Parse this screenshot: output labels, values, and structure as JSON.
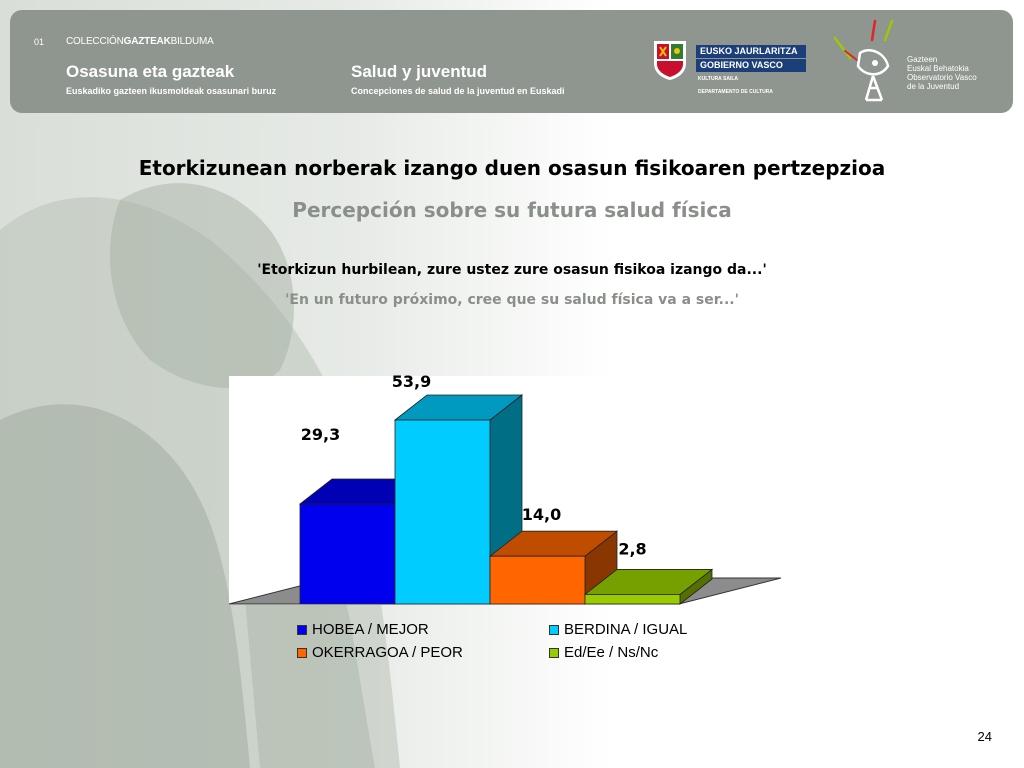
{
  "header": {
    "number": "01",
    "collection_prefix": "COLECCIÓN",
    "collection_bold": "GAZTEAK",
    "collection_suffix": "BILDUMA",
    "title_eu": "Osasuna eta gazteak",
    "subtitle_eu": "Euskadiko gazteen ikusmoldeak osasunari buruz",
    "title_es": "Salud y juventud",
    "subtitle_es": "Concepciones de salud de la juventud en Euskadi",
    "gov_line1": "EUSKO JAURLARITZA",
    "gov_line2": "GOBIERNO VASCO",
    "gov_dept1": "KULTURA SAILA",
    "gov_dept2": "DEPARTAMENTO DE CULTURA",
    "observatory": [
      "Gazteen",
      "Euskal Behatokia",
      "Observatorio Vasco",
      "de la Juventud"
    ]
  },
  "titles": {
    "main_eu": "Etorkizunean norberak izango duen osasun fisikoaren pertzepzioa",
    "main_es": "Percepción sobre su futura salud física",
    "question_eu": "'Etorkizun hurbilean, zure ustez zure osasun fisikoa izango da...'",
    "question_es": "'En un futuro próximo, cree que su salud física va a ser...'"
  },
  "chart_data": {
    "type": "bar",
    "categories": [
      "HOBEA / MEJOR",
      "BERDINA / IGUAL",
      "OKERRAGOA / PEOR",
      "Ed/Ee / Ns/Nc"
    ],
    "values": [
      29.3,
      53.9,
      14.0,
      2.8
    ],
    "value_labels": [
      "29,3",
      "53,9",
      "14,0",
      "2,8"
    ],
    "colors": [
      "#0000ee",
      "#00ccff",
      "#ff6600",
      "#99cc00"
    ],
    "side_colors": [
      "#00008a",
      "#006f86",
      "#8a3600",
      "#557000"
    ],
    "top_colors": [
      "#0000b4",
      "#0099c0",
      "#c04c00",
      "#75a000"
    ],
    "ylim": [
      0,
      60
    ],
    "legend_position": "bottom",
    "style": "3d"
  },
  "page_number": "24"
}
